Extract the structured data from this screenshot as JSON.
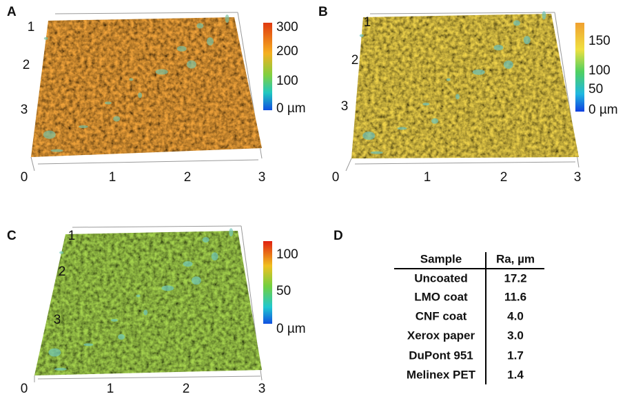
{
  "panels": [
    {
      "label": "A",
      "x_ticks": [
        "0",
        "1",
        "2",
        "3"
      ],
      "y_ticks": [
        "1",
        "2",
        "3"
      ],
      "colorbar_ticks": [
        "300",
        "200",
        "100",
        "0 µm"
      ]
    },
    {
      "label": "B",
      "x_ticks": [
        "0",
        "1",
        "2",
        "3"
      ],
      "y_ticks": [
        "1",
        "2",
        "3"
      ],
      "colorbar_ticks": [
        "150",
        "100",
        "50",
        "0 µm"
      ]
    },
    {
      "label": "C",
      "x_ticks": [
        "0",
        "1",
        "2",
        "3"
      ],
      "y_ticks": [
        "1",
        "2",
        "3"
      ],
      "colorbar_ticks": [
        "100",
        "50",
        "0 µm"
      ]
    }
  ],
  "table": {
    "label": "D",
    "header": [
      "Sample",
      "Ra, µm"
    ],
    "rows": [
      [
        "Uncoated",
        "17.2"
      ],
      [
        "LMO coat",
        "11.6"
      ],
      [
        "CNF coat",
        "4.0"
      ],
      [
        "Xerox paper",
        "3.0"
      ],
      [
        "DuPont 951",
        "1.7"
      ],
      [
        "Melinex PET",
        "1.4"
      ]
    ]
  }
}
